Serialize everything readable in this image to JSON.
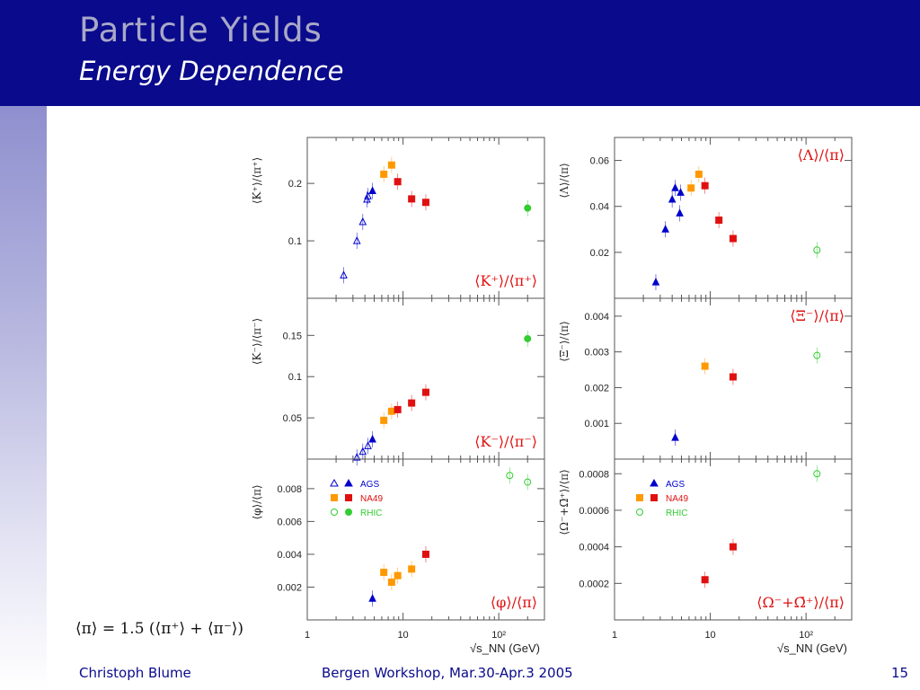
{
  "slide": {
    "title": "Particle Yields",
    "subtitle": "Energy Dependence",
    "footer_left": "Christoph Blume",
    "footer_center": "Bergen Workshop, Mar.30-Apr.3 2005",
    "page_number": "15",
    "formula": "⟨π⟩ = 1.5 (⟨π⁺⟩ + ⟨π⁻⟩)"
  },
  "colors": {
    "header": "#0a0a8c",
    "title": "#a8a8c8",
    "AGS": "#0000cc",
    "NA49": "#e01010",
    "NA49_light": "#ff9900",
    "RHIC": "#33cc33",
    "label_red": "#e01010"
  },
  "legend_items": [
    "AGS",
    "NA49",
    "RHIC"
  ],
  "shared_xlabel": "√s_NN (GeV)",
  "chart_data": [
    {
      "id": "kplus",
      "type": "scatter",
      "ylabel": "⟨K⁺⟩/⟨π⁺⟩",
      "annotation": "⟨K⁺⟩/⟨π⁺⟩",
      "xscale": "log",
      "xlim": [
        1,
        300
      ],
      "ylim": [
        0,
        0.28
      ],
      "yticks": [
        0.1,
        0.2
      ],
      "xticks": [],
      "series": [
        {
          "name": "AGS",
          "points": [
            {
              "x": 2.4,
              "y": 0.04,
              "open": true
            },
            {
              "x": 3.3,
              "y": 0.1,
              "open": true
            },
            {
              "x": 3.8,
              "y": 0.133,
              "open": true
            },
            {
              "x": 4.2,
              "y": 0.172,
              "open": true
            },
            {
              "x": 4.3,
              "y": 0.178,
              "open": true
            },
            {
              "x": 4.8,
              "y": 0.187,
              "open": false
            }
          ]
        },
        {
          "name": "NA49",
          "points": [
            {
              "x": 6.3,
              "y": 0.216,
              "light": true
            },
            {
              "x": 7.6,
              "y": 0.232,
              "light": true
            },
            {
              "x": 8.8,
              "y": 0.203,
              "light": false
            },
            {
              "x": 12.3,
              "y": 0.173,
              "light": false
            },
            {
              "x": 17.3,
              "y": 0.167,
              "light": false
            }
          ]
        },
        {
          "name": "RHIC",
          "points": [
            {
              "x": 200,
              "y": 0.157,
              "open": false
            }
          ]
        }
      ]
    },
    {
      "id": "kminus",
      "type": "scatter",
      "ylabel": "⟨K⁻⟩/⟨π⁻⟩",
      "annotation": "⟨K⁻⟩/⟨π⁻⟩",
      "xscale": "log",
      "xlim": [
        1,
        300
      ],
      "ylim": [
        0,
        0.195
      ],
      "yticks": [
        0.05,
        0.1,
        0.15
      ],
      "xticks": [],
      "series": [
        {
          "name": "AGS",
          "points": [
            {
              "x": 3.3,
              "y": 0.002,
              "open": true
            },
            {
              "x": 3.8,
              "y": 0.009,
              "open": true
            },
            {
              "x": 4.3,
              "y": 0.016,
              "open": true
            },
            {
              "x": 4.8,
              "y": 0.024,
              "open": false
            }
          ]
        },
        {
          "name": "NA49",
          "points": [
            {
              "x": 6.3,
              "y": 0.047,
              "light": true
            },
            {
              "x": 7.6,
              "y": 0.058,
              "light": true
            },
            {
              "x": 8.8,
              "y": 0.06,
              "light": false
            },
            {
              "x": 12.3,
              "y": 0.068,
              "light": false
            },
            {
              "x": 17.3,
              "y": 0.081,
              "light": false
            }
          ]
        },
        {
          "name": "RHIC",
          "points": [
            {
              "x": 200,
              "y": 0.146,
              "open": false
            }
          ]
        }
      ]
    },
    {
      "id": "phi",
      "type": "scatter",
      "ylabel": "⟨φ⟩/⟨π⟩",
      "annotation": "⟨φ⟩/⟨π⟩",
      "xscale": "log",
      "xlim": [
        1,
        300
      ],
      "ylim": [
        0,
        0.0098
      ],
      "yticks": [
        0.002,
        0.004,
        0.006,
        0.008
      ],
      "xticks": [
        "1",
        "10",
        "10²"
      ],
      "series": [
        {
          "name": "AGS",
          "points": [
            {
              "x": 4.8,
              "y": 0.0013,
              "open": false
            }
          ]
        },
        {
          "name": "NA49",
          "points": [
            {
              "x": 6.3,
              "y": 0.0029,
              "light": true
            },
            {
              "x": 7.6,
              "y": 0.0023,
              "light": true
            },
            {
              "x": 8.8,
              "y": 0.0027,
              "light": true
            },
            {
              "x": 12.3,
              "y": 0.0031,
              "light": true
            },
            {
              "x": 17.3,
              "y": 0.004,
              "light": false
            }
          ]
        },
        {
          "name": "RHIC",
          "points": [
            {
              "x": 130,
              "y": 0.0088,
              "open": true
            },
            {
              "x": 200,
              "y": 0.0084,
              "open": true
            }
          ]
        }
      ]
    },
    {
      "id": "lambda",
      "type": "scatter",
      "ylabel": "⟨Λ⟩/⟨π⟩",
      "annotation": "⟨Λ⟩/⟨π⟩",
      "xscale": "log",
      "xlim": [
        1,
        300
      ],
      "ylim": [
        0,
        0.07
      ],
      "yticks": [
        0.02,
        0.04,
        0.06
      ],
      "xticks": [],
      "series": [
        {
          "name": "AGS",
          "points": [
            {
              "x": 2.7,
              "y": 0.007,
              "open": false
            },
            {
              "x": 3.4,
              "y": 0.03,
              "open": false
            },
            {
              "x": 4.0,
              "y": 0.043,
              "open": false
            },
            {
              "x": 4.3,
              "y": 0.048,
              "open": false
            },
            {
              "x": 4.8,
              "y": 0.037,
              "open": false
            },
            {
              "x": 4.9,
              "y": 0.046,
              "open": false
            }
          ]
        },
        {
          "name": "NA49",
          "points": [
            {
              "x": 6.3,
              "y": 0.048,
              "light": true
            },
            {
              "x": 7.6,
              "y": 0.054,
              "light": true
            },
            {
              "x": 8.8,
              "y": 0.049,
              "light": false
            },
            {
              "x": 12.3,
              "y": 0.034,
              "light": false
            },
            {
              "x": 17.3,
              "y": 0.026,
              "light": false
            }
          ]
        },
        {
          "name": "RHIC",
          "points": [
            {
              "x": 130,
              "y": 0.021,
              "open": true
            }
          ]
        }
      ]
    },
    {
      "id": "xi",
      "type": "scatter",
      "ylabel": "⟨Ξ⁻⟩/⟨π⟩",
      "annotation": "⟨Ξ⁻⟩/⟨π⟩",
      "xscale": "log",
      "xlim": [
        1,
        300
      ],
      "ylim": [
        0,
        0.0045
      ],
      "yticks": [
        0.001,
        0.002,
        0.003,
        0.004
      ],
      "xticks": [],
      "series": [
        {
          "name": "AGS",
          "points": [
            {
              "x": 4.3,
              "y": 0.0006,
              "open": false
            }
          ]
        },
        {
          "name": "NA49",
          "points": [
            {
              "x": 8.8,
              "y": 0.0026,
              "light": true
            },
            {
              "x": 17.3,
              "y": 0.0023,
              "light": false
            }
          ]
        },
        {
          "name": "RHIC",
          "points": [
            {
              "x": 130,
              "y": 0.0029,
              "open": true
            }
          ]
        }
      ]
    },
    {
      "id": "omega",
      "type": "scatter",
      "ylabel": "⟨Ω⁻+Ω̄⁺⟩/⟨π⟩",
      "annotation": "⟨Ω⁻+Ω̄⁺⟩/⟨π⟩",
      "xscale": "log",
      "xlim": [
        1,
        300
      ],
      "ylim": [
        0,
        0.00088
      ],
      "yticks": [
        0.0002,
        0.0004,
        0.0006,
        0.0008
      ],
      "xticks": [
        "1",
        "10",
        "10²"
      ],
      "series": [
        {
          "name": "NA49",
          "points": [
            {
              "x": 8.8,
              "y": 0.00022,
              "light": false
            },
            {
              "x": 17.3,
              "y": 0.0004,
              "light": false
            }
          ]
        },
        {
          "name": "RHIC",
          "points": [
            {
              "x": 130,
              "y": 0.0008,
              "open": true
            }
          ]
        }
      ]
    }
  ]
}
